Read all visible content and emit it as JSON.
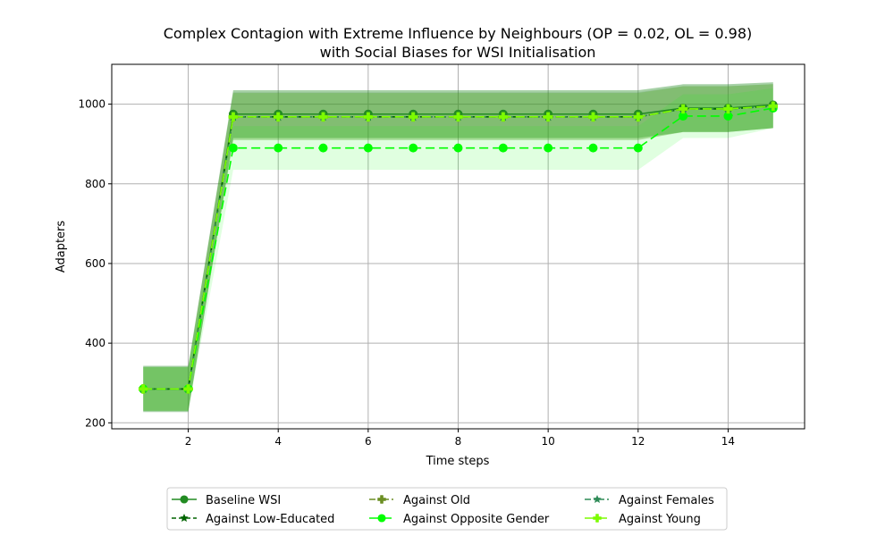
{
  "chart_data": {
    "type": "line",
    "title_line1": "Complex Contagion with Extreme Influence by Neighbours (OP = 0.02, OL = 0.98)",
    "title_line2": "with Social Biases for WSI Initialisation",
    "xlabel": "Time steps",
    "ylabel": "Adapters",
    "xlim": [
      0.3,
      15.7
    ],
    "ylim": [
      185,
      1100
    ],
    "xticks": [
      2,
      4,
      6,
      8,
      10,
      12,
      14
    ],
    "yticks": [
      200,
      400,
      600,
      800,
      1000
    ],
    "grid": true,
    "legend_position": "bottom-center",
    "x": [
      1,
      2,
      3,
      4,
      5,
      6,
      7,
      8,
      9,
      10,
      11,
      12,
      13,
      14,
      15
    ],
    "series": [
      {
        "name": "Baseline WSI",
        "color": "#228b22",
        "linestyle": "solid",
        "marker": "circle",
        "values": [
          285,
          285,
          975,
          975,
          975,
          975,
          975,
          975,
          975,
          975,
          975,
          975,
          990,
          990,
          998
        ],
        "band_upper": [
          343,
          343,
          1035,
          1035,
          1035,
          1035,
          1035,
          1035,
          1035,
          1035,
          1035,
          1035,
          1050,
          1050,
          1055
        ],
        "band_lower": [
          227,
          227,
          915,
          915,
          915,
          915,
          915,
          915,
          915,
          915,
          915,
          915,
          930,
          930,
          940
        ],
        "band_color": "#228b22",
        "band_opacity": 0.4
      },
      {
        "name": "Against Low-Educated",
        "color": "#006400",
        "linestyle": "dashed",
        "marker": "star",
        "values": [
          285,
          285,
          968,
          968,
          968,
          968,
          968,
          968,
          968,
          968,
          968,
          968,
          988,
          988,
          995
        ],
        "band_upper": [
          340,
          340,
          1030,
          1030,
          1030,
          1030,
          1030,
          1030,
          1030,
          1030,
          1030,
          1030,
          1045,
          1045,
          1050
        ],
        "band_lower": [
          230,
          230,
          910,
          910,
          910,
          910,
          910,
          910,
          910,
          910,
          910,
          910,
          930,
          930,
          940
        ],
        "band_color": "#006400",
        "band_opacity": 0.12
      },
      {
        "name": "Against Old",
        "color": "#6b8e23",
        "linestyle": "dashdot",
        "marker": "plus",
        "values": [
          285,
          285,
          968,
          968,
          968,
          968,
          968,
          968,
          968,
          968,
          968,
          968,
          988,
          988,
          995
        ],
        "band_upper": [
          340,
          340,
          1028,
          1028,
          1028,
          1028,
          1028,
          1028,
          1028,
          1028,
          1028,
          1028,
          1045,
          1045,
          1050
        ],
        "band_lower": [
          230,
          230,
          910,
          910,
          910,
          910,
          910,
          910,
          910,
          910,
          910,
          910,
          930,
          930,
          940
        ],
        "band_color": "#6b8e23",
        "band_opacity": 0.12
      },
      {
        "name": "Against Opposite Gender",
        "color": "#00ff00",
        "linestyle": "longdash",
        "marker": "circle",
        "values": [
          285,
          285,
          890,
          890,
          890,
          890,
          890,
          890,
          890,
          890,
          890,
          890,
          970,
          970,
          990
        ],
        "band_upper": [
          340,
          340,
          945,
          945,
          945,
          945,
          945,
          945,
          945,
          945,
          945,
          945,
          1025,
          1025,
          1040
        ],
        "band_lower": [
          230,
          230,
          835,
          835,
          835,
          835,
          835,
          835,
          835,
          835,
          835,
          835,
          915,
          915,
          940
        ],
        "band_color": "#00ff00",
        "band_opacity": 0.12
      },
      {
        "name": "Against Females",
        "color": "#2e8b57",
        "linestyle": "dashdot",
        "marker": "star",
        "values": [
          285,
          285,
          968,
          968,
          968,
          968,
          968,
          968,
          968,
          968,
          968,
          968,
          988,
          988,
          995
        ],
        "band_upper": [
          340,
          340,
          1028,
          1028,
          1028,
          1028,
          1028,
          1028,
          1028,
          1028,
          1028,
          1028,
          1045,
          1045,
          1050
        ],
        "band_lower": [
          230,
          230,
          910,
          910,
          910,
          910,
          910,
          910,
          910,
          910,
          910,
          910,
          930,
          930,
          940
        ],
        "band_color": "#2e8b57",
        "band_opacity": 0.1
      },
      {
        "name": "Against Young",
        "color": "#7cfc00",
        "linestyle": "longdash",
        "marker": "plus",
        "values": [
          285,
          285,
          968,
          968,
          968,
          968,
          968,
          968,
          968,
          968,
          968,
          968,
          988,
          988,
          995
        ],
        "band_upper": [
          340,
          340,
          1028,
          1028,
          1028,
          1028,
          1028,
          1028,
          1028,
          1028,
          1028,
          1028,
          1045,
          1045,
          1050
        ],
        "band_lower": [
          230,
          230,
          910,
          910,
          910,
          910,
          910,
          910,
          910,
          910,
          910,
          910,
          930,
          930,
          940
        ],
        "band_color": "#7cfc00",
        "band_opacity": 0.1
      }
    ]
  }
}
